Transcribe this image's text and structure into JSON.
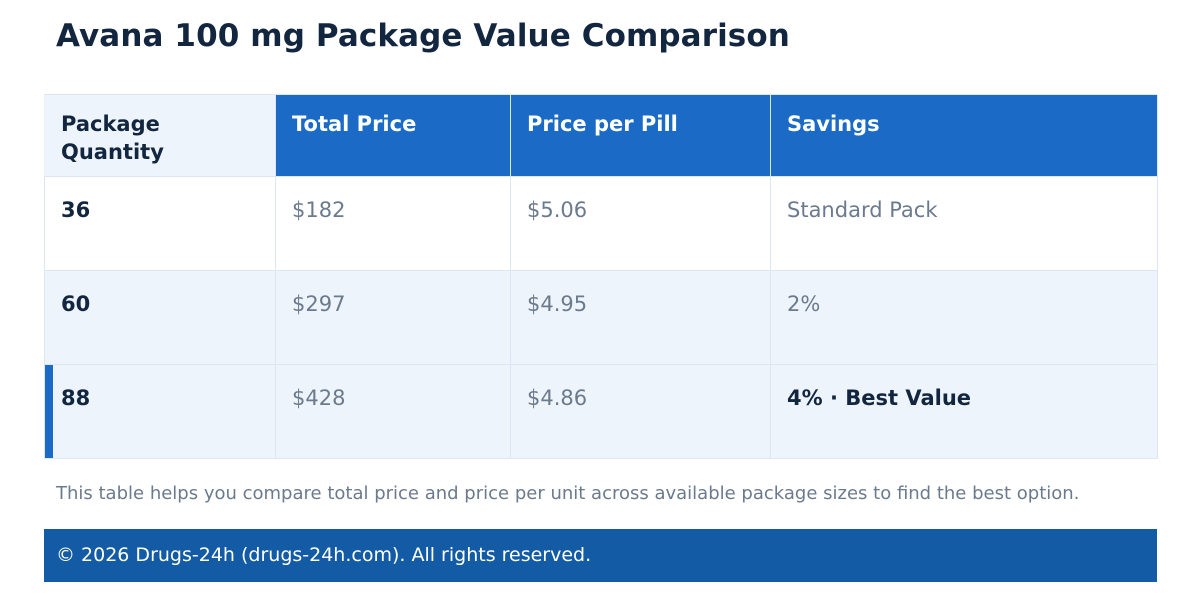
{
  "title": "Avana 100 mg Package Value Comparison",
  "table": {
    "headers": [
      "Package Quantity",
      "Total Price",
      "Price per Pill",
      "Savings"
    ],
    "rows": [
      {
        "quantity": "36",
        "total_price": "$182",
        "price_per_pill": "$5.06",
        "savings": "Standard Pack"
      },
      {
        "quantity": "60",
        "total_price": "$297",
        "price_per_pill": "$4.95",
        "savings": "2%"
      },
      {
        "quantity": "88",
        "total_price": "$428",
        "price_per_pill": "$4.86",
        "savings": "4% · Best Value"
      }
    ]
  },
  "note": "This table helps you compare total price and price per unit across available package sizes to find the best option.",
  "footer": {
    "text": "© 2026 Drugs-24h (drugs-24h.com). All rights reserved."
  },
  "colors": {
    "header_blue": "#1a6ac6",
    "footer_blue": "#135ba4",
    "row_tint": "#edf4fc",
    "title_text": "#13263f"
  }
}
